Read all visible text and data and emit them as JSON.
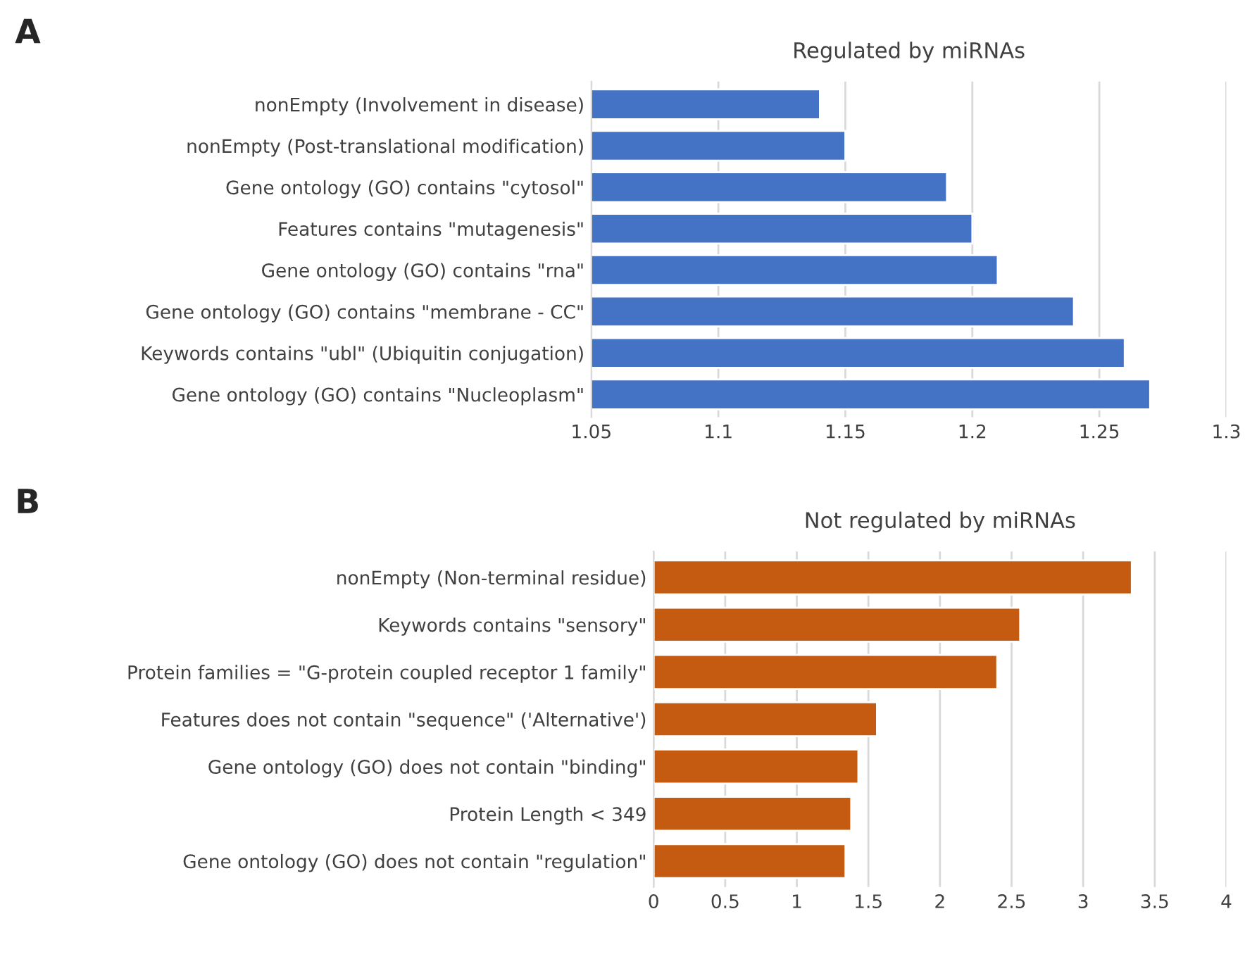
{
  "chart_data": [
    {
      "type": "bar",
      "orientation": "horizontal",
      "title": "Regulated by miRNAs",
      "annotations": [
        "A"
      ],
      "categories": [
        "nonEmpty (Involvement in disease)",
        "nonEmpty (Post-translational modification)",
        "Gene ontology (GO) contains \"cytosol\"",
        "Features contains \"mutagenesis\"",
        "Gene ontology (GO) contains \"rna\"",
        "Gene ontology (GO) contains \"membrane - CC\"",
        "Keywords contains \"ubl\" (Ubiquitin conjugation)",
        "Gene ontology (GO) contains \"Nucleoplasm\""
      ],
      "values": [
        1.14,
        1.15,
        1.19,
        1.2,
        1.21,
        1.24,
        1.26,
        1.27
      ],
      "color": "#4472c4",
      "xlim": [
        1.05,
        1.3
      ],
      "xticks": [
        1.05,
        1.1,
        1.15,
        1.2,
        1.25,
        1.3
      ],
      "grid": "x"
    },
    {
      "type": "bar",
      "orientation": "horizontal",
      "title": "Not regulated by miRNAs",
      "annotations": [
        "B"
      ],
      "categories": [
        "nonEmpty (Non-terminal residue)",
        "Keywords contains \"sensory\"",
        "Protein families = \"G-protein coupled receptor 1 family\"",
        "Features does not contain \"sequence\" ('Alternative')",
        "Gene ontology (GO) does not contain \"binding\"",
        "Protein Length < 349",
        "Gene ontology (GO) does not contain \"regulation\""
      ],
      "values": [
        3.34,
        2.56,
        2.4,
        1.56,
        1.43,
        1.38,
        1.34
      ],
      "color": "#c55a11",
      "xlim": [
        0,
        4
      ],
      "xticks": [
        0,
        0.5,
        1,
        1.5,
        2,
        2.5,
        3,
        3.5,
        4
      ],
      "grid": "x"
    }
  ]
}
